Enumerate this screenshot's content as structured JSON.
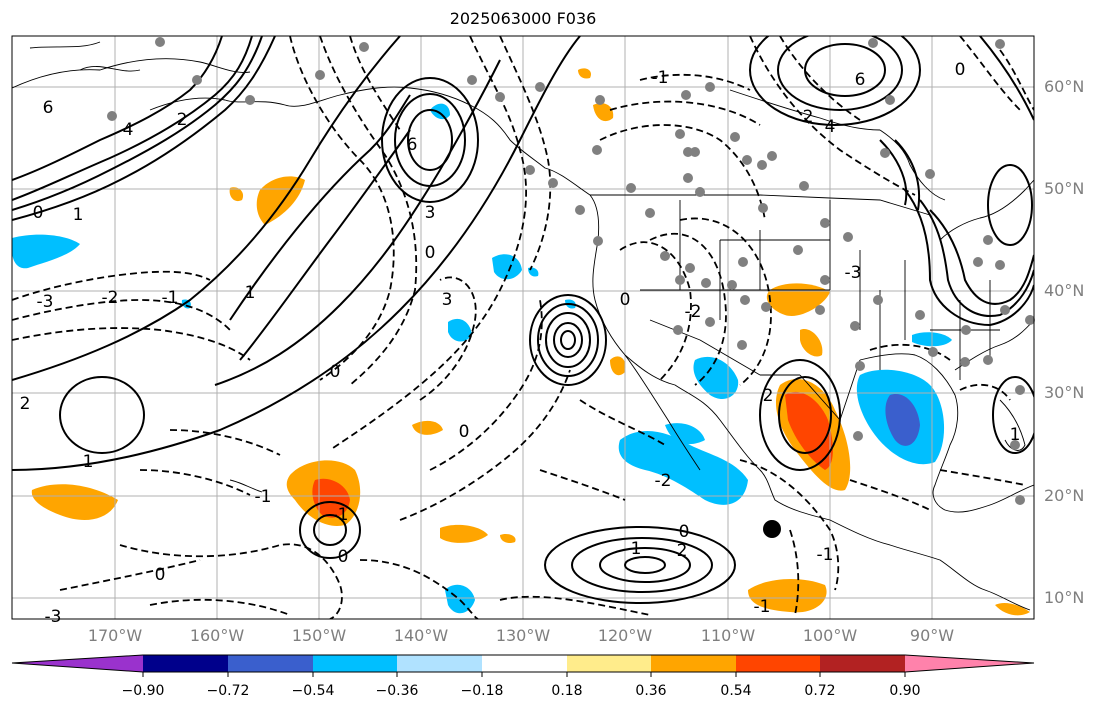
{
  "title": "2025063000 F036",
  "lat_labels": [
    "60°N",
    "50°N",
    "40°N",
    "30°N",
    "20°N",
    "10°N"
  ],
  "lon_labels": [
    "170°W",
    "160°W",
    "150°W",
    "140°W",
    "130°W",
    "120°W",
    "110°W",
    "100°W",
    "90°W"
  ],
  "colorbar": {
    "colors": [
      "#9a32cd",
      "#00008b",
      "#3a5fcd",
      "#00bfff",
      "#b0e2ff",
      "#ffffff",
      "#ffec8b",
      "#ffa500",
      "#ff4500",
      "#b22222",
      "#ff82ab"
    ],
    "tick_labels": [
      "−0.90",
      "−0.72",
      "−0.54",
      "−0.36",
      "−0.18",
      "0.18",
      "0.36",
      "0.54",
      "0.72",
      "0.90"
    ]
  },
  "contour_labels": [
    "6",
    "4",
    "2",
    "0",
    "1",
    "3",
    "6",
    "0",
    "-3",
    "-2",
    "-1",
    "1",
    "3",
    "0",
    "6",
    "4",
    "2",
    "0",
    "-1",
    "-2",
    "-3",
    "0",
    "1",
    "-1",
    "2",
    "0",
    "-1",
    "1",
    "2",
    "0",
    "-2",
    "-1",
    "-3",
    "0",
    "1",
    "2",
    "0",
    "-1"
  ],
  "colors": {
    "grid": "#b0b0b0",
    "coast": "#000000",
    "station": "#808080",
    "tick_text": "#7f7f7f"
  }
}
